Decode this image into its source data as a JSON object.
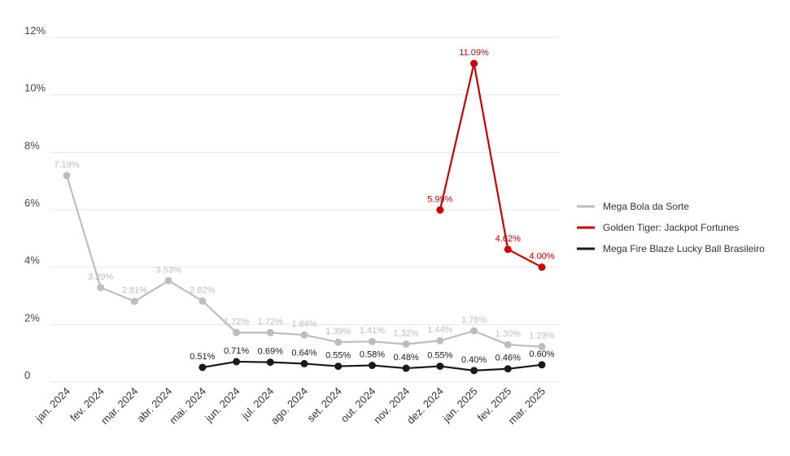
{
  "chart_data": {
    "type": "line",
    "title": "",
    "xlabel": "",
    "ylabel": "",
    "ylim": [
      0,
      12
    ],
    "y_ticks": [
      {
        "value": 0,
        "label": "0"
      },
      {
        "value": 2,
        "label": "2%"
      },
      {
        "value": 4,
        "label": "4%"
      },
      {
        "value": 6,
        "label": "6%"
      },
      {
        "value": 8,
        "label": "8%"
      },
      {
        "value": 10,
        "label": "10%"
      },
      {
        "value": 12,
        "label": "12%"
      }
    ],
    "grid": true,
    "legend_position": "right",
    "categories": [
      "jan. 2024",
      "fev. 2024",
      "mar. 2024",
      "abr. 2024",
      "mai. 2024",
      "jun. 2024",
      "jul. 2024",
      "ago. 2024",
      "set. 2024",
      "out. 2024",
      "nov. 2024",
      "dez. 2024",
      "jan. 2025",
      "fev. 2025",
      "mar. 2025"
    ],
    "series": [
      {
        "name": "Mega Bola da Sorte",
        "color": "#bdbdbd",
        "values": [
          7.19,
          3.29,
          2.81,
          3.53,
          2.82,
          1.72,
          1.72,
          1.64,
          1.39,
          1.41,
          1.32,
          1.44,
          1.78,
          1.3,
          1.23
        ],
        "labels": [
          "7.19%",
          "3.29%",
          "2.81%",
          "3.53%",
          "2.82%",
          "1.72%",
          "1.72%",
          "1.64%",
          "1.39%",
          "1.41%",
          "1.32%",
          "1.44%",
          "1.78%",
          "1.30%",
          "1.23%"
        ]
      },
      {
        "name": "Golden Tiger: Jackpot Fortunes",
        "color": "#cc0000",
        "values": [
          null,
          null,
          null,
          null,
          null,
          null,
          null,
          null,
          null,
          null,
          null,
          5.99,
          11.09,
          4.62,
          4.0
        ],
        "labels": [
          null,
          null,
          null,
          null,
          null,
          null,
          null,
          null,
          null,
          null,
          null,
          "5.99%",
          "11.09%",
          "4.62%",
          "4.00%"
        ]
      },
      {
        "name": "Mega Fire Blaze Lucky Ball Brasileiro",
        "color": "#1a1a1a",
        "values": [
          null,
          null,
          null,
          null,
          0.51,
          0.71,
          0.69,
          0.64,
          0.55,
          0.58,
          0.48,
          0.55,
          0.4,
          0.46,
          0.6
        ],
        "labels": [
          null,
          null,
          null,
          null,
          "0.51%",
          "0.71%",
          "0.69%",
          "0.64%",
          "0.55%",
          "0.58%",
          "0.48%",
          "0.55%",
          "0.40%",
          "0.46%",
          "0.60%"
        ]
      }
    ]
  }
}
